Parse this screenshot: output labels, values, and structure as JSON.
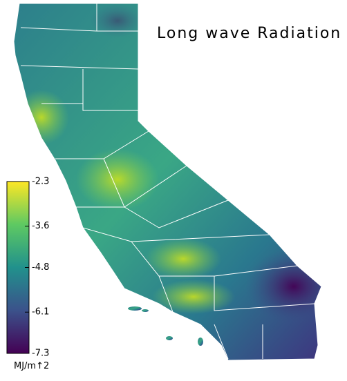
{
  "map": {
    "title": "Long wave Radiation",
    "colorbar": {
      "lim": [
        -7.3,
        -2.3
      ],
      "ticks": [
        -2.3,
        -3.6,
        -4.8,
        -6.1,
        -7.3
      ],
      "unit": "MJ/m↑2",
      "colors": [
        "#440154",
        "#3b528b",
        "#21918c",
        "#5ec962",
        "#fde725"
      ]
    }
  }
}
